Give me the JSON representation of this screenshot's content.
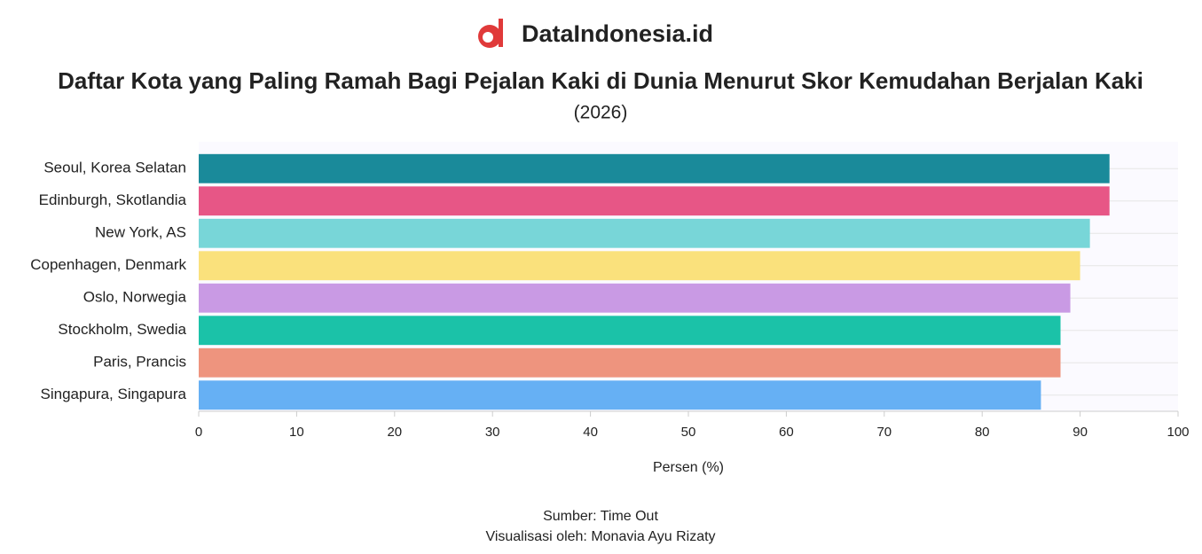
{
  "brand": "DataIndonesia.id",
  "chart_data": {
    "type": "bar",
    "orientation": "horizontal",
    "title": "Daftar Kota yang Paling Ramah Bagi Pejalan Kaki di Dunia Menurut Skor Kemudahan Berjalan Kaki",
    "subtitle": "(2026)",
    "categories": [
      "Seoul, Korea Selatan",
      "Edinburgh, Skotlandia",
      "New York, AS",
      "Copenhagen, Denmark",
      "Oslo, Norwegia",
      "Stockholm, Swedia",
      "Paris, Prancis",
      "Singapura, Singapura"
    ],
    "values": [
      93,
      93,
      91,
      90,
      89,
      88,
      88,
      86
    ],
    "colors": [
      "#1a8a9a",
      "#e75686",
      "#78d6d8",
      "#fae17c",
      "#c99ae4",
      "#1bc2a8",
      "#ee947e",
      "#66b0f4"
    ],
    "xlim": [
      0,
      100
    ],
    "xticks": [
      0,
      10,
      20,
      30,
      40,
      50,
      60,
      70,
      80,
      90,
      100
    ],
    "xlabel": "Persen (%)",
    "source": "Sumber: Time Out",
    "credit": "Visualisasi oleh: Monavia Ayu Rizaty"
  }
}
